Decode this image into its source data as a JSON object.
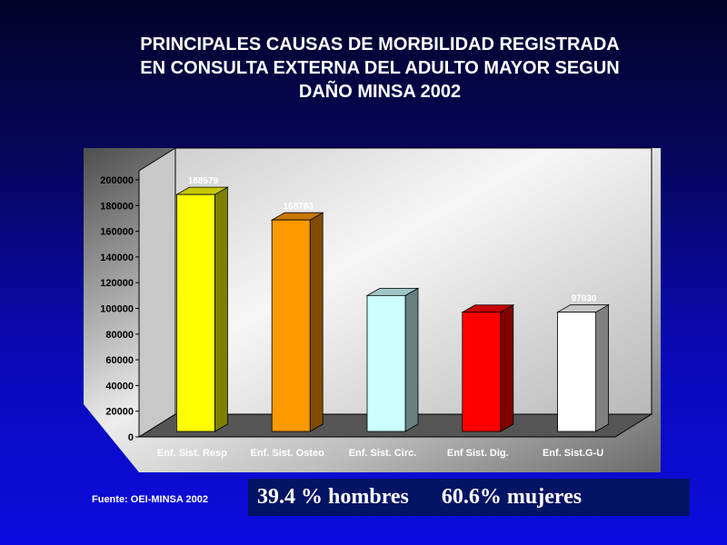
{
  "title": {
    "line1": "PRINCIPALES CAUSAS DE MORBILIDAD REGISTRADA",
    "line2": "EN CONSULTA EXTERNA DEL ADULTO MAYOR SEGUN",
    "line3": "DAÑO  MINSA 2002"
  },
  "chart_data": {
    "type": "bar",
    "categories": [
      "Enf. Sist. Resp",
      "Enf. Sist. Osteo",
      "Enf. Sist. Circ.",
      "Enf Sist. Dig.",
      "Enf. Sist.G-U"
    ],
    "values": [
      188579,
      168783,
      110000,
      97000,
      97030
    ],
    "value_labels": [
      "188579",
      "168783",
      "",
      "",
      "97030"
    ],
    "colors": [
      "#ffff00",
      "#ff9900",
      "#ccffff",
      "#ff0000",
      "#ffffff"
    ],
    "ylim": [
      0,
      200000
    ],
    "yticks": [
      "0",
      "20000",
      "40000",
      "60000",
      "80000",
      "100000",
      "120000",
      "140000",
      "160000",
      "180000",
      "200000"
    ],
    "grid": false,
    "style": "3d",
    "background": "gray gradient",
    "title": "",
    "xlabel": "",
    "ylabel": ""
  },
  "footer": {
    "source": "Fuente: OEI-MINSA 2002",
    "banner": "39.4 % hombres      60.6% mujeres"
  }
}
